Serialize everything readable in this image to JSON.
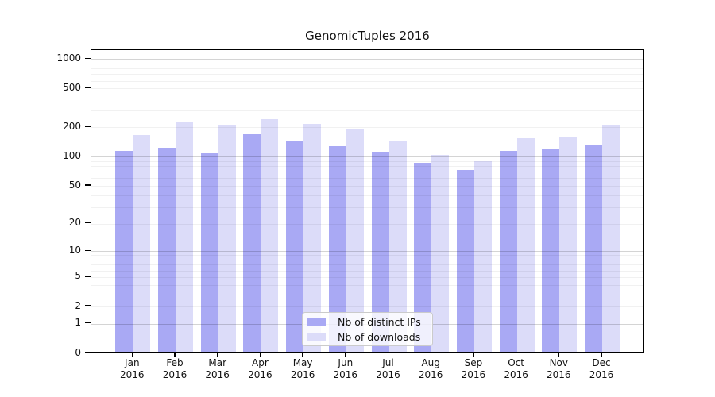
{
  "title": "GenomicTuples 2016",
  "legend": {
    "items": [
      {
        "label": "Nb of distinct IPs",
        "color_key": "ips"
      },
      {
        "label": "Nb of downloads",
        "color_key": "downloads"
      }
    ]
  },
  "colors": {
    "ips": "#a9a9f4",
    "downloads": "#dcdcf9",
    "grid_major": "rgba(0,0,0,0.17)",
    "grid_minor": "rgba(0,0,0,0.055)",
    "axis": "#000000",
    "text": "#111111"
  },
  "chart_data": {
    "type": "bar",
    "title": "GenomicTuples 2016",
    "categories": [
      "Jan 2016",
      "Feb 2016",
      "Mar 2016",
      "Apr 2016",
      "May 2016",
      "Jun 2016",
      "Jul 2016",
      "Aug 2016",
      "Sep 2016",
      "Oct 2016",
      "Nov 2016",
      "Dec 2016"
    ],
    "series": [
      {
        "name": "Nb of distinct IPs",
        "values": [
          111,
          119,
          104,
          164,
          138,
          124,
          106,
          84,
          70,
          111,
          115,
          128
        ]
      },
      {
        "name": "Nb of downloads",
        "values": [
          161,
          216,
          201,
          234,
          210,
          185,
          139,
          101,
          87,
          150,
          153,
          206
        ]
      }
    ],
    "xlabel": "",
    "ylabel": "",
    "y_axis": {
      "scale": "log1p",
      "tick_values": [
        0,
        1,
        2,
        5,
        10,
        20,
        50,
        100,
        200,
        500,
        1000
      ],
      "tick_labels": [
        "0",
        "1",
        "2",
        "5",
        "10",
        "20",
        "50",
        "100",
        "200",
        "500",
        "1000"
      ],
      "minor_grid_values": [
        2,
        3,
        4,
        5,
        6,
        7,
        8,
        9,
        20,
        30,
        40,
        50,
        60,
        70,
        80,
        90,
        200,
        300,
        400,
        500,
        600,
        700,
        800,
        900
      ],
      "major_grid_values": [
        1,
        10,
        100,
        1000
      ],
      "range_max": 1240
    },
    "grid": "both",
    "legend_position": "lower center"
  }
}
